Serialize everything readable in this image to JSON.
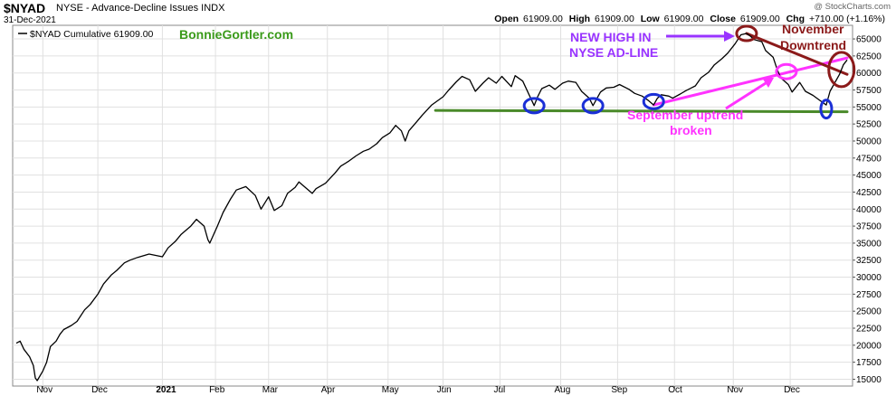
{
  "header": {
    "symbol": "$NYAD",
    "subtitle": "NYSE - Advance-Decline Issues  INDX",
    "date": "31-Dec-2021",
    "credit": "@ StockCharts.com",
    "open_label": "Open",
    "open": "61909.00",
    "high_label": "High",
    "high": "61909.00",
    "low_label": "Low",
    "low": "61909.00",
    "close_label": "Close",
    "close": "61909.00",
    "chg_label": "Chg",
    "chg": "+710.00 (+1.16%)"
  },
  "legend": {
    "label": "$NYAD Cumulative 61909.00",
    "brand": "BonnieGortler.com"
  },
  "colors": {
    "line": "#000000",
    "grid": "#e0e0e0",
    "support": "#4a8a2a",
    "uptrend": "#ff33ff",
    "downtrend": "#8b1a1a",
    "circle_blue": "#1a2fd6",
    "annotation_purple": "#9933ff",
    "annotation_magenta": "#ff33ff",
    "brand_green": "#3a9a1a"
  },
  "chart_data": {
    "type": "line",
    "title": "$NYAD NYSE - Advance-Decline Issues",
    "xlabel": "",
    "ylabel": "",
    "ylim": [
      14000,
      67000
    ],
    "y_ticks": [
      15000,
      17500,
      20000,
      22500,
      25000,
      27500,
      30000,
      32500,
      35000,
      37500,
      40000,
      42500,
      45000,
      47500,
      50000,
      52500,
      55000,
      57500,
      60000,
      62500,
      65000
    ],
    "y_tick_labels": [
      "15000",
      "17500",
      "20000",
      "22500",
      "25000",
      "27500",
      "30000",
      "32500",
      "35000",
      "37500",
      "40000",
      "42500",
      "45000",
      "47500",
      "50000",
      "52500",
      "55000",
      "57500",
      "60000",
      "62500",
      "65000"
    ],
    "x_range": [
      "2020-10-19",
      "2021-12-31"
    ],
    "x_ticks": [
      {
        "date": "2020-11-02",
        "label": "Nov",
        "bold": false
      },
      {
        "date": "2020-12-01",
        "label": "Dec",
        "bold": false
      },
      {
        "date": "2021-01-04",
        "label": "2021",
        "bold": true
      },
      {
        "date": "2021-02-01",
        "label": "Feb",
        "bold": false
      },
      {
        "date": "2021-03-01",
        "label": "Mar",
        "bold": false
      },
      {
        "date": "2021-04-01",
        "label": "Apr",
        "bold": false
      },
      {
        "date": "2021-05-03",
        "label": "May",
        "bold": false
      },
      {
        "date": "2021-06-01",
        "label": "Jun",
        "bold": false
      },
      {
        "date": "2021-07-01",
        "label": "Jul",
        "bold": false
      },
      {
        "date": "2021-08-02",
        "label": "Aug",
        "bold": false
      },
      {
        "date": "2021-09-01",
        "label": "Sep",
        "bold": false
      },
      {
        "date": "2021-10-01",
        "label": "Oct",
        "bold": false
      },
      {
        "date": "2021-11-01",
        "label": "Nov",
        "bold": false
      },
      {
        "date": "2021-12-01",
        "label": "Dec",
        "bold": false
      }
    ],
    "grid": true,
    "legend_position": "top-left",
    "series": [
      {
        "name": "$NYAD Cumulative 61909.00",
        "points": [
          [
            "2020-10-19",
            20300
          ],
          [
            "2020-10-21",
            20600
          ],
          [
            "2020-10-23",
            19400
          ],
          [
            "2020-10-26",
            18300
          ],
          [
            "2020-10-28",
            17000
          ],
          [
            "2020-10-29",
            15200
          ],
          [
            "2020-10-30",
            14800
          ],
          [
            "2020-11-02",
            16200
          ],
          [
            "2020-11-04",
            17500
          ],
          [
            "2020-11-06",
            19800
          ],
          [
            "2020-11-09",
            20600
          ],
          [
            "2020-11-11",
            21600
          ],
          [
            "2020-11-13",
            22300
          ],
          [
            "2020-11-17",
            22900
          ],
          [
            "2020-11-20",
            23500
          ],
          [
            "2020-11-24",
            25200
          ],
          [
            "2020-11-27",
            26000
          ],
          [
            "2020-12-01",
            27500
          ],
          [
            "2020-12-04",
            29000
          ],
          [
            "2020-12-08",
            30300
          ],
          [
            "2020-12-11",
            31000
          ],
          [
            "2020-12-15",
            32100
          ],
          [
            "2020-12-18",
            32500
          ],
          [
            "2020-12-22",
            32900
          ],
          [
            "2020-12-28",
            33400
          ],
          [
            "2021-01-04",
            33000
          ],
          [
            "2021-01-07",
            34300
          ],
          [
            "2021-01-11",
            35300
          ],
          [
            "2021-01-14",
            36300
          ],
          [
            "2021-01-19",
            37500
          ],
          [
            "2021-01-22",
            38500
          ],
          [
            "2021-01-26",
            37500
          ],
          [
            "2021-01-28",
            35500
          ],
          [
            "2021-01-29",
            35000
          ],
          [
            "2021-02-02",
            37500
          ],
          [
            "2021-02-05",
            39500
          ],
          [
            "2021-02-09",
            41500
          ],
          [
            "2021-02-12",
            42800
          ],
          [
            "2021-02-17",
            43300
          ],
          [
            "2021-02-22",
            42000
          ],
          [
            "2021-02-25",
            40000
          ],
          [
            "2021-03-01",
            41800
          ],
          [
            "2021-03-04",
            39800
          ],
          [
            "2021-03-08",
            40500
          ],
          [
            "2021-03-11",
            42300
          ],
          [
            "2021-03-15",
            43200
          ],
          [
            "2021-03-17",
            44000
          ],
          [
            "2021-03-19",
            43500
          ],
          [
            "2021-03-24",
            42300
          ],
          [
            "2021-03-26",
            43000
          ],
          [
            "2021-03-31",
            43800
          ],
          [
            "2021-04-05",
            45300
          ],
          [
            "2021-04-08",
            46300
          ],
          [
            "2021-04-12",
            47000
          ],
          [
            "2021-04-16",
            47800
          ],
          [
            "2021-04-20",
            48500
          ],
          [
            "2021-04-23",
            48800
          ],
          [
            "2021-04-27",
            49600
          ],
          [
            "2021-04-30",
            50500
          ],
          [
            "2021-05-04",
            51200
          ],
          [
            "2021-05-07",
            52300
          ],
          [
            "2021-05-10",
            51500
          ],
          [
            "2021-05-12",
            50000
          ],
          [
            "2021-05-14",
            51500
          ],
          [
            "2021-05-18",
            52800
          ],
          [
            "2021-05-21",
            53800
          ],
          [
            "2021-05-26",
            55300
          ],
          [
            "2021-06-01",
            56500
          ],
          [
            "2021-06-04",
            57500
          ],
          [
            "2021-06-08",
            58700
          ],
          [
            "2021-06-11",
            59500
          ],
          [
            "2021-06-15",
            59000
          ],
          [
            "2021-06-18",
            57300
          ],
          [
            "2021-06-22",
            58500
          ],
          [
            "2021-06-25",
            59300
          ],
          [
            "2021-06-29",
            58500
          ],
          [
            "2021-07-02",
            59500
          ],
          [
            "2021-07-07",
            58000
          ],
          [
            "2021-07-09",
            59600
          ],
          [
            "2021-07-13",
            58800
          ],
          [
            "2021-07-16",
            57000
          ],
          [
            "2021-07-19",
            55200
          ],
          [
            "2021-07-21",
            56600
          ],
          [
            "2021-07-23",
            57700
          ],
          [
            "2021-07-27",
            58200
          ],
          [
            "2021-07-30",
            57600
          ],
          [
            "2021-08-03",
            58500
          ],
          [
            "2021-08-06",
            58800
          ],
          [
            "2021-08-10",
            58600
          ],
          [
            "2021-08-13",
            57300
          ],
          [
            "2021-08-17",
            56300
          ],
          [
            "2021-08-19",
            55200
          ],
          [
            "2021-08-23",
            57200
          ],
          [
            "2021-08-26",
            57800
          ],
          [
            "2021-08-30",
            57900
          ],
          [
            "2021-09-02",
            58300
          ],
          [
            "2021-09-07",
            57600
          ],
          [
            "2021-09-10",
            57000
          ],
          [
            "2021-09-14",
            56600
          ],
          [
            "2021-09-17",
            56000
          ],
          [
            "2021-09-20",
            55300
          ],
          [
            "2021-09-22",
            56300
          ],
          [
            "2021-09-24",
            56800
          ],
          [
            "2021-09-28",
            56600
          ],
          [
            "2021-09-30",
            56300
          ],
          [
            "2021-10-04",
            56900
          ],
          [
            "2021-10-07",
            57400
          ],
          [
            "2021-10-12",
            58100
          ],
          [
            "2021-10-15",
            59300
          ],
          [
            "2021-10-19",
            60100
          ],
          [
            "2021-10-22",
            61200
          ],
          [
            "2021-10-26",
            62100
          ],
          [
            "2021-10-29",
            62900
          ],
          [
            "2021-11-02",
            64300
          ],
          [
            "2021-11-05",
            65600
          ],
          [
            "2021-11-08",
            65800
          ],
          [
            "2021-11-10",
            65400
          ],
          [
            "2021-11-12",
            64900
          ],
          [
            "2021-11-16",
            64600
          ],
          [
            "2021-11-18",
            63300
          ],
          [
            "2021-11-22",
            62300
          ],
          [
            "2021-11-24",
            60600
          ],
          [
            "2021-11-26",
            59300
          ],
          [
            "2021-11-30",
            58300
          ],
          [
            "2021-12-02",
            57200
          ],
          [
            "2021-12-06",
            58600
          ],
          [
            "2021-12-09",
            57300
          ],
          [
            "2021-12-13",
            56700
          ],
          [
            "2021-12-16",
            56100
          ],
          [
            "2021-12-20",
            55300
          ],
          [
            "2021-12-22",
            57300
          ],
          [
            "2021-12-27",
            59800
          ],
          [
            "2021-12-29",
            61200
          ],
          [
            "2021-12-31",
            61909
          ]
        ]
      }
    ],
    "annotations": [
      {
        "text": "NEW HIGH IN",
        "color": "#9933ff"
      },
      {
        "text": "NYSE AD-LINE",
        "color": "#9933ff"
      },
      {
        "text": "November",
        "color": "#8b1a1a"
      },
      {
        "text": "Downtrend",
        "color": "#8b1a1a"
      },
      {
        "text": "September uptrend",
        "color": "#ff33ff"
      },
      {
        "text": "broken",
        "color": "#ff33ff"
      }
    ],
    "drawn_lines": [
      {
        "kind": "support",
        "color": "#4a8a2a",
        "start": [
          "2021-05-28",
          54500
        ],
        "end": [
          "2021-12-31",
          54300
        ]
      },
      {
        "kind": "uptrend",
        "color": "#ff33ff",
        "start": [
          "2021-09-20",
          55300
        ],
        "end": [
          "2021-12-31",
          62200
        ]
      },
      {
        "kind": "downtrend",
        "color": "#8b1a1a",
        "start": [
          "2021-11-08",
          65800
        ],
        "end": [
          "2021-12-31",
          59800
        ]
      }
    ],
    "circles": [
      {
        "color": "#1a2fd6",
        "center": [
          "2021-07-19",
          55200
        ]
      },
      {
        "color": "#1a2fd6",
        "center": [
          "2021-08-19",
          55200
        ]
      },
      {
        "color": "#1a2fd6",
        "center": [
          "2021-09-20",
          55800
        ]
      },
      {
        "color": "#8b1a1a",
        "center": [
          "2021-11-08",
          65800
        ]
      },
      {
        "color": "#ff33ff",
        "center": [
          "2021-11-29",
          60200
        ]
      },
      {
        "color": "#1a2fd6",
        "center": [
          "2021-12-20",
          54700
        ]
      },
      {
        "color": "#8b1a1a",
        "center": [
          "2021-12-28",
          60500
        ]
      }
    ]
  }
}
